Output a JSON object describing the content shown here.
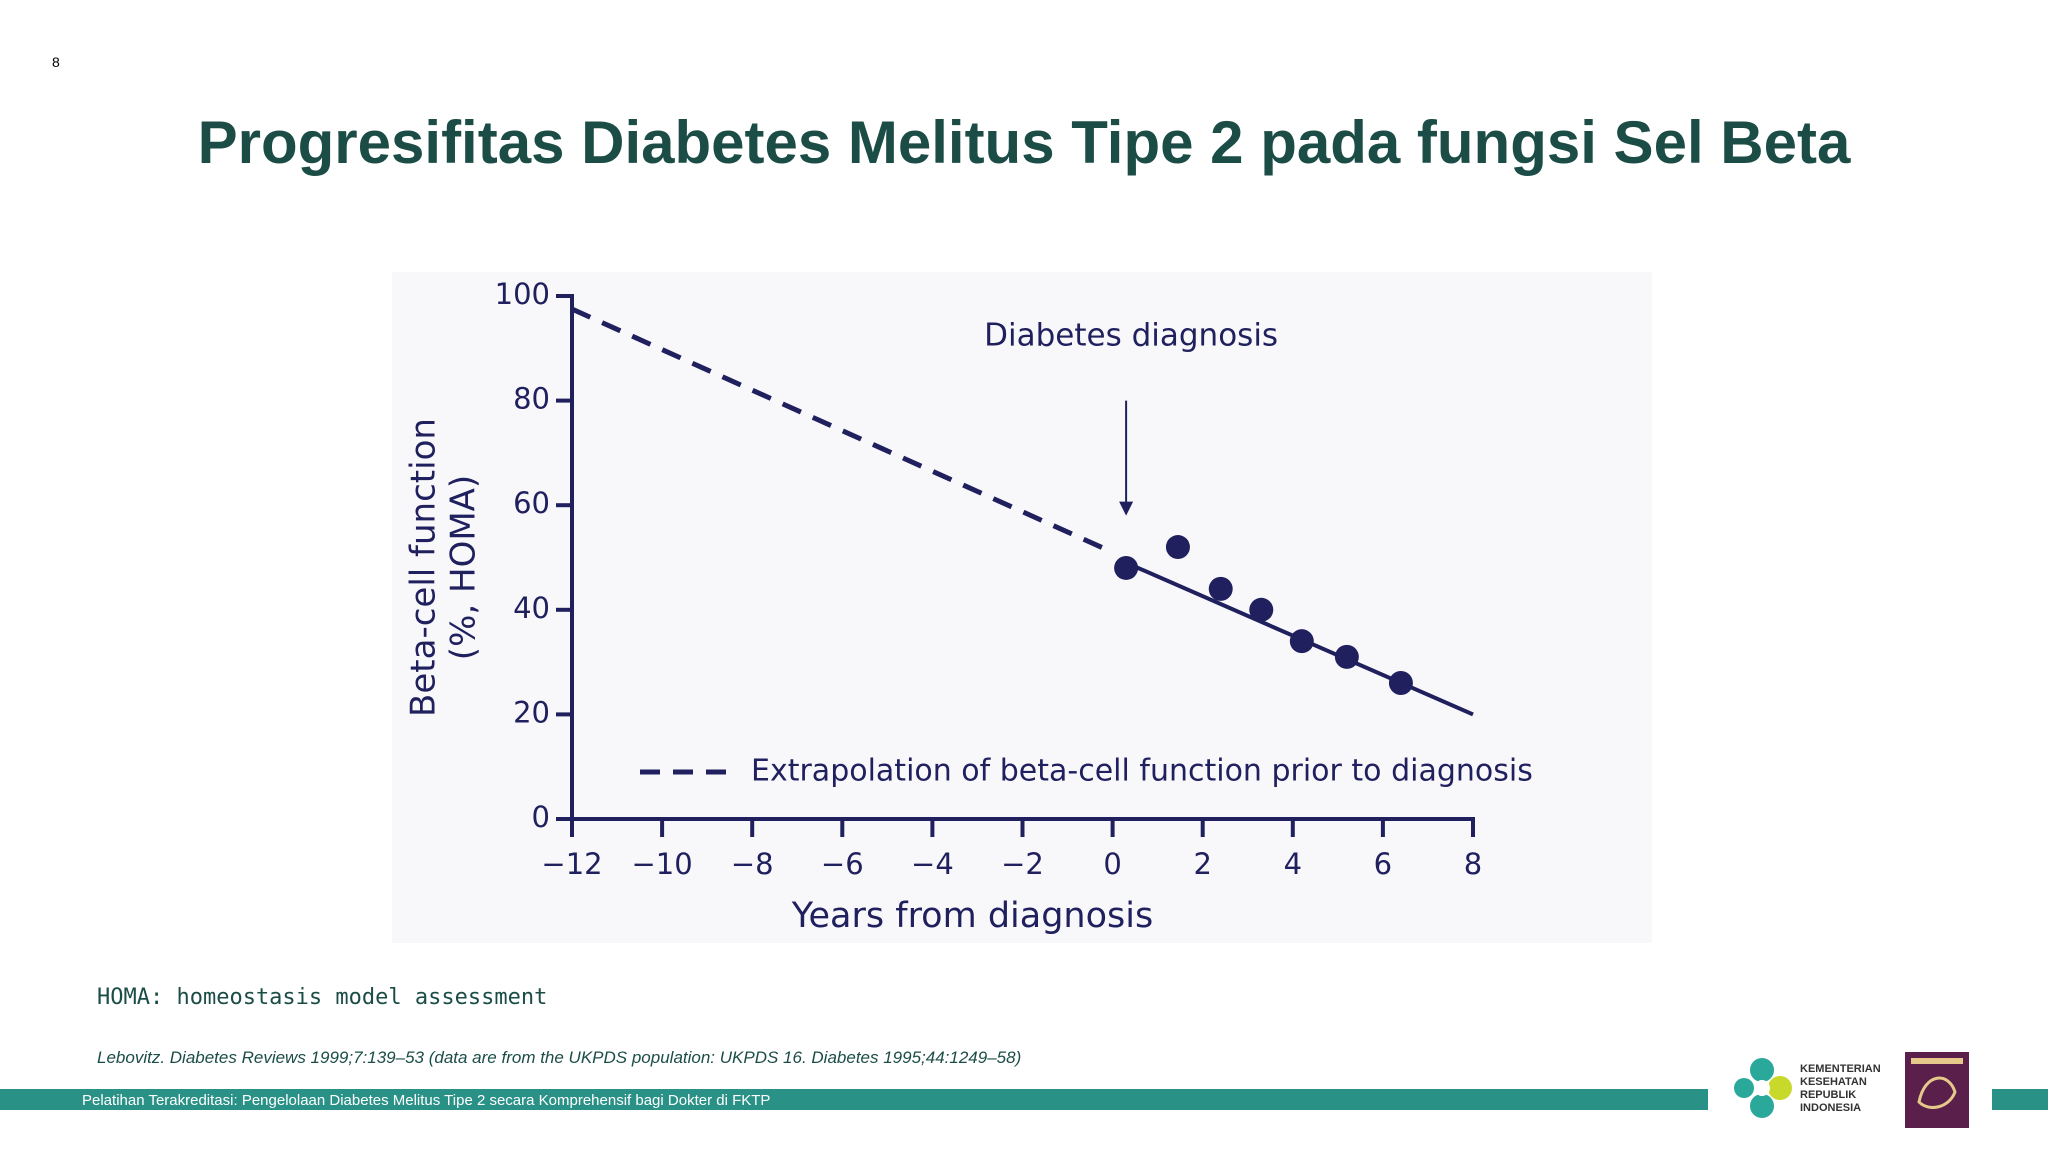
{
  "page_number": "8",
  "title": "Progresifitas Diabetes Melitus Tipe 2 pada fungsi Sel Beta",
  "note": "HOMA: homeostasis model assessment",
  "citation": "Lebovitz. Diabetes Reviews 1999;7:139–53 (data are from the UKPDS population: UKPDS 16. Diabetes 1995;44:1249–58)",
  "footer": "Pelatihan Terakreditasi: Pengelolaan Diabetes Melitus Tipe 2 secara Komprehensif bagi Dokter di FKTP",
  "logo_lines": [
    "KEMENTERIAN",
    "KESEHATAN",
    "REPUBLIK",
    "INDONESIA"
  ],
  "chart_data": {
    "type": "scatter",
    "x_label": "Years from diagnosis",
    "y_label": [
      "Beta-cell function",
      "(%, HOMA)"
    ],
    "xlim": [
      -12,
      8
    ],
    "ylim": [
      0,
      100
    ],
    "xticks": [
      {
        "value": -12,
        "label": "−12"
      },
      {
        "value": -10,
        "label": "−10"
      },
      {
        "value": -8,
        "label": "−8"
      },
      {
        "value": -6,
        "label": "−6"
      },
      {
        "value": -4,
        "label": "−4"
      },
      {
        "value": -2,
        "label": "−2"
      },
      0,
      2,
      4,
      6,
      8
    ],
    "yticks": [
      0,
      20,
      40,
      60,
      80,
      100
    ],
    "color": "#20205e",
    "x": [
      0.3,
      1.45,
      2.4,
      3.3,
      4.2,
      5.2,
      6.4
    ],
    "values": [
      48,
      52,
      44,
      40,
      34,
      31,
      26
    ],
    "series": [
      {
        "name": "Extrapolation of beta-cell function prior to diagnosis",
        "color": "#20205e",
        "dashed": true,
        "x": [
          -12,
          0
        ],
        "values": [
          97.5,
          51
        ]
      }
    ],
    "trend": {
      "color": "#20205e",
      "x": [
        0.3,
        8
      ],
      "values": [
        49,
        20
      ]
    },
    "annotation": {
      "text": "Diabetes diagnosis",
      "x": 0.3,
      "y": [
        80,
        58
      ]
    }
  }
}
